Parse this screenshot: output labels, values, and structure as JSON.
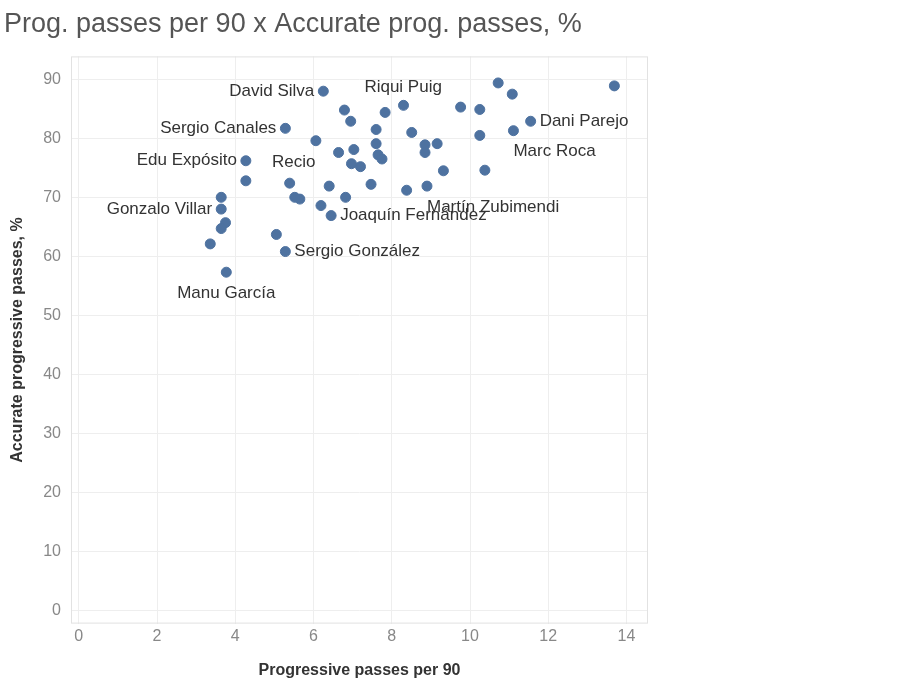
{
  "chart_data": {
    "type": "scatter",
    "title": "Prog. passes per 90 x Accurate prog. passes, %",
    "x_label": "Progressive passes per 90",
    "y_label": "Accurate progressive passes, %",
    "x": [
      13.69,
      10.72,
      11.08,
      9.76,
      10.25,
      11.55,
      11.11,
      10.25,
      10.38,
      9.32,
      8.9,
      8.38,
      9.16,
      8.85,
      8.85,
      8.51,
      8.3,
      7.83,
      7.6,
      7.6,
      7.65,
      7.75,
      7.47,
      7.2,
      7.03,
      6.97,
      6.95,
      6.79,
      6.64,
      6.25,
      6.06,
      5.28,
      6.82,
      6.4,
      6.19,
      6.45,
      5.39,
      5.52,
      5.65,
      5.05,
      5.28,
      4.27,
      4.27,
      3.64,
      3.64,
      3.75,
      3.64,
      3.36,
      3.77
    ],
    "values": [
      89.0,
      89.5,
      87.6,
      85.4,
      85.0,
      83.0,
      81.4,
      80.6,
      74.7,
      74.6,
      72.0,
      71.3,
      79.2,
      79.0,
      77.7,
      81.1,
      85.7,
      84.5,
      81.6,
      79.2,
      77.3,
      76.6,
      72.3,
      75.3,
      78.2,
      75.8,
      83.0,
      84.9,
      77.7,
      88.1,
      79.7,
      81.8,
      70.1,
      72.0,
      68.7,
      67.0,
      72.5,
      70.1,
      69.8,
      63.8,
      60.9,
      76.3,
      72.9,
      70.1,
      68.1,
      65.8,
      64.8,
      62.2,
      57.4
    ],
    "point_labels": [
      null,
      null,
      null,
      null,
      null,
      "Dani Parejo",
      "Marc Roca",
      null,
      null,
      null,
      "Martín Zubimendi",
      null,
      null,
      null,
      null,
      null,
      null,
      "Riqui Puig",
      null,
      null,
      null,
      null,
      null,
      null,
      null,
      null,
      null,
      null,
      null,
      "David Silva",
      null,
      "Sergio Canales",
      null,
      null,
      null,
      "Joaquín Fernández",
      "Recio",
      null,
      null,
      null,
      "Sergio González",
      "Edu Expósito",
      null,
      null,
      "Gonzalo Villar",
      null,
      null,
      null,
      "Manu García"
    ],
    "color": "#4e72a0",
    "marker": "circle",
    "xlim": [
      -0.2,
      14.55
    ],
    "ylim": [
      -2.2,
      94
    ],
    "xticks": [
      0,
      2,
      4,
      6,
      8,
      10,
      12,
      14
    ],
    "yticks": [
      0,
      10,
      20,
      30,
      40,
      50,
      60,
      70,
      80,
      90
    ],
    "grid": true
  }
}
